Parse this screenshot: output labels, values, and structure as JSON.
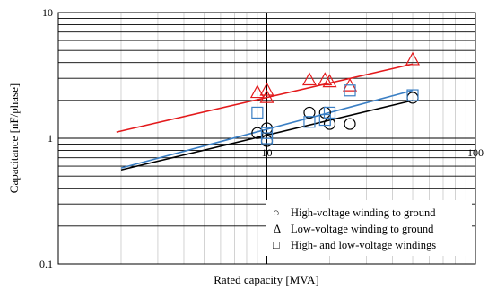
{
  "chart_data": {
    "type": "scatter",
    "title": "",
    "xlabel": "Rated capacity [MVA]",
    "ylabel": "Capacitance [nF/phase]",
    "xscale": "log",
    "yscale": "log",
    "xlim": [
      1,
      100
    ],
    "ylim": [
      0.1,
      10
    ],
    "x_tick_labels": [
      {
        "value": 10,
        "label": "10"
      },
      {
        "value": 100,
        "label": "100"
      }
    ],
    "y_tick_labels": [
      {
        "value": 0.1,
        "label": "0.1"
      },
      {
        "value": 1,
        "label": "1"
      },
      {
        "value": 10,
        "label": "10"
      }
    ],
    "grid": true,
    "legend_position": "bottom-right",
    "series": [
      {
        "name": "High-voltage winding to ground",
        "marker": "circle",
        "color": "#000000",
        "points": [
          [
            9.0,
            1.1
          ],
          [
            10.0,
            1.2
          ],
          [
            10.0,
            0.95
          ],
          [
            16.0,
            1.6
          ],
          [
            19.0,
            1.6
          ],
          [
            20.0,
            1.3
          ],
          [
            25.0,
            1.3
          ],
          [
            50.0,
            2.1
          ]
        ],
        "trend": [
          [
            2.0,
            0.56
          ],
          [
            50.0,
            2.0
          ]
        ]
      },
      {
        "name": "Low-voltage winding to ground",
        "marker": "triangle",
        "color": "#e31a1c",
        "points": [
          [
            9.0,
            2.3
          ],
          [
            10.0,
            2.4
          ],
          [
            10.0,
            2.1
          ],
          [
            16.0,
            2.9
          ],
          [
            19.0,
            2.9
          ],
          [
            20.0,
            2.8
          ],
          [
            25.0,
            2.6
          ],
          [
            50.0,
            4.2
          ]
        ],
        "trend": [
          [
            1.9,
            1.12
          ],
          [
            50.0,
            3.9
          ]
        ]
      },
      {
        "name": "High- and low-voltage windings",
        "marker": "square",
        "color": "#3b7fc4",
        "points": [
          [
            9.0,
            1.6
          ],
          [
            10.0,
            1.1
          ],
          [
            10.0,
            1.0
          ],
          [
            16.0,
            1.35
          ],
          [
            19.0,
            1.4
          ],
          [
            20.0,
            1.6
          ],
          [
            25.0,
            2.4
          ],
          [
            50.0,
            2.2
          ]
        ],
        "trend": [
          [
            2.0,
            0.58
          ],
          [
            50.0,
            2.4
          ]
        ]
      }
    ]
  },
  "legend": {
    "items": [
      {
        "symbol": "○",
        "label": "High-voltage winding to ground"
      },
      {
        "symbol": "Δ",
        "label": "Low-voltage winding to ground"
      },
      {
        "symbol": "□",
        "label": "High- and low-voltage windings"
      }
    ]
  }
}
